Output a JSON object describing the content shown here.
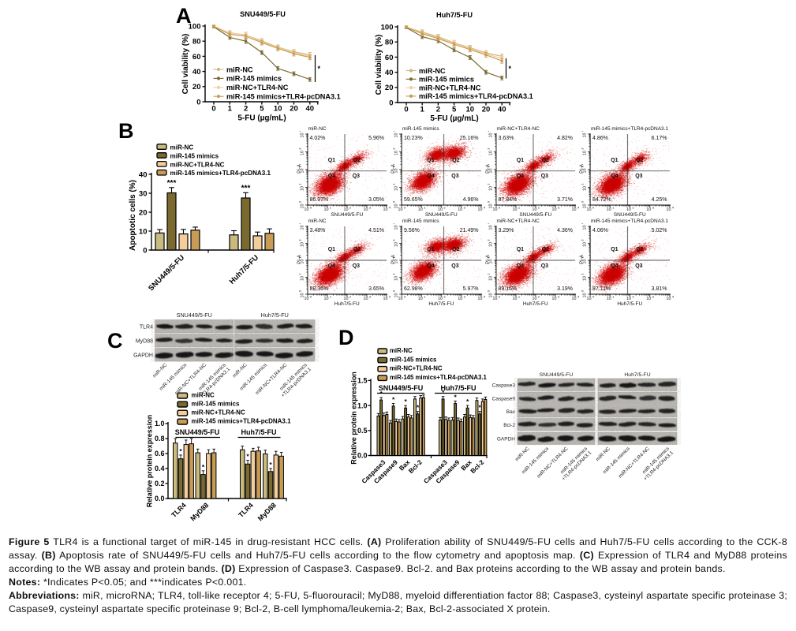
{
  "panels": {
    "a": "A",
    "b": "B",
    "c": "C",
    "d": "D"
  },
  "colors": {
    "series": [
      "#c9ba80",
      "#7b6a2f",
      "#f4cd9b",
      "#c89c55"
    ],
    "axis": "#000000",
    "scatter": "#cc0000",
    "blot_bg": "#b6b3ae",
    "band": "#141414"
  },
  "series_labels": [
    "miR-NC",
    "miR-145 mimics",
    "miR-NC+TLR4-NC",
    "miR-145 mimics+TLR4-pcDNA3.1"
  ],
  "chart_data": [
    {
      "id": "cck8_snu449",
      "type": "line",
      "title": "SNU449/5-FU",
      "xlabel": "5-FU (µg/mL)",
      "ylabel": "Cell viability (%)",
      "x_ticks": [
        "0",
        "1",
        "2",
        "5",
        "10",
        "20",
        "40"
      ],
      "ylim": [
        0,
        100
      ],
      "y_step": 20,
      "sig": "*",
      "legend_position": "inside-left",
      "series": [
        {
          "name": "miR-NC",
          "values": [
            99,
            91,
            88,
            80.5,
            72,
            66,
            62
          ],
          "err": [
            1.5,
            3,
            3.5,
            3,
            3,
            3,
            3
          ]
        },
        {
          "name": "miR-145 mimics",
          "values": [
            99,
            85,
            80,
            65,
            44,
            37,
            29.5
          ],
          "err": [
            1.5,
            2.5,
            3,
            2.5,
            2.5,
            2.5,
            2.5
          ]
        },
        {
          "name": "miR-NC+TLR4-NC",
          "values": [
            100,
            90.5,
            88.5,
            79,
            71.5,
            65,
            60
          ],
          "err": [
            1.5,
            3,
            3.5,
            3,
            3,
            3,
            3
          ]
        },
        {
          "name": "miR-145 mimics+TLR4-pcDNA3.1",
          "values": [
            99.5,
            89,
            86.5,
            78,
            70.5,
            63.5,
            58.5
          ],
          "err": [
            1.5,
            3,
            3,
            3,
            3,
            3,
            3
          ]
        }
      ]
    },
    {
      "id": "cck8_huh7",
      "type": "line",
      "title": "Huh7/5-FU",
      "xlabel": "5-FU (µg/mL)",
      "ylabel": "Cell viability (%)",
      "x_ticks": [
        "0",
        "1",
        "2",
        "5",
        "10",
        "20",
        "40"
      ],
      "ylim": [
        0,
        100
      ],
      "y_step": 20,
      "sig": "*",
      "legend_position": "inside-left",
      "series": [
        {
          "name": "miR-NC",
          "values": [
            99.5,
            93,
            87,
            79,
            72.5,
            65.5,
            61
          ],
          "err": [
            1.5,
            3,
            3,
            3,
            3,
            3,
            3
          ]
        },
        {
          "name": "miR-145 mimics",
          "values": [
            99,
            87,
            81.5,
            69.5,
            59.5,
            40,
            32.5
          ],
          "err": [
            1.5,
            2.5,
            2.5,
            2.5,
            2.5,
            2.5,
            2.5
          ]
        },
        {
          "name": "miR-NC+TLR4-NC",
          "values": [
            100,
            92,
            86,
            78.5,
            71.5,
            64.5,
            58
          ],
          "err": [
            1.5,
            3,
            3,
            3.5,
            3,
            3,
            3
          ]
        },
        {
          "name": "miR-145 mimics+TLR4-pcDNA3.1",
          "values": [
            99.5,
            91,
            84.5,
            77,
            70,
            63,
            55
          ],
          "err": [
            1.5,
            3,
            3,
            3,
            3,
            3,
            3
          ]
        }
      ]
    },
    {
      "id": "apoptosis",
      "type": "bar",
      "ylabel": "Apoptotic cells (%)",
      "categories": [
        "SNU449/5-FU",
        "Huh7/5-FU"
      ],
      "ylim": [
        0,
        40
      ],
      "y_step": 10,
      "y_decimals": 0,
      "series": [
        {
          "name": "miR-NC",
          "values": [
            9,
            8
          ],
          "err": [
            1.8,
            2.2
          ]
        },
        {
          "name": "miR-145 mimics",
          "values": [
            30.2,
            27.5
          ],
          "err": [
            2.8,
            2.8
          ],
          "sig": "***"
        },
        {
          "name": "miR-NC+TLR4-NC",
          "values": [
            8.5,
            7.5
          ],
          "err": [
            2.4,
            2
          ]
        },
        {
          "name": "miR-145 mimics+TLR4-pcDNA3.1",
          "values": [
            10.5,
            8.8
          ],
          "err": [
            1.6,
            2.4
          ]
        }
      ]
    },
    {
      "id": "flow",
      "type": "scatter-grid",
      "ylabel": "PI-A",
      "log_decades": [
        0,
        1,
        2,
        3,
        4
      ],
      "col_titles": [
        "miR-NC",
        "miR-145 mimics",
        "miR-NC+TLR4-NC",
        "miR-145 mimics+TLR4-pcDNA3.1"
      ],
      "quadrant_labels": [
        "Q1",
        "Q2",
        "Q3",
        "Q4"
      ],
      "rows": [
        {
          "xlabel": "SNU449/5-FU",
          "plots": [
            {
              "q1": "4.02%",
              "q2": "5.96%",
              "q3": "3.05%",
              "q4": "86.97%",
              "profile": "lo"
            },
            {
              "q1": "10.23%",
              "q2": "25.16%",
              "q3": "4.96%",
              "q4": "59.65%",
              "profile": "hi"
            },
            {
              "q1": "3.63%",
              "q2": "4.82%",
              "q3": "3.71%",
              "q4": "87.84%",
              "profile": "lo"
            },
            {
              "q1": "4.86%",
              "q2": "6.17%",
              "q3": "4.25%",
              "q4": "84.72%",
              "profile": "lo"
            }
          ]
        },
        {
          "xlabel": "Huh7/5-FU",
          "plots": [
            {
              "q1": "3.48%",
              "q2": "4.51%",
              "q3": "3.65%",
              "q4": "88.36%",
              "profile": "lo"
            },
            {
              "q1": "9.56%",
              "q2": "21.49%",
              "q3": "5.97%",
              "q4": "62.98%",
              "profile": "hi"
            },
            {
              "q1": "3.29%",
              "q2": "4.36%",
              "q3": "3.19%",
              "q4": "89.16%",
              "profile": "lo"
            },
            {
              "q1": "4.06%",
              "q2": "5.02%",
              "q3": "3.81%",
              "q4": "87.11%",
              "profile": "lo"
            }
          ]
        }
      ],
      "cluster_profiles": {
        "lo": [
          {
            "c": [
              0.275,
              0.705
            ],
            "s": [
              0.1,
              0.07
            ],
            "a": -30,
            "n": 4300,
            "core": 0.8
          },
          {
            "c": [
              0.465,
              0.45
            ],
            "s": [
              0.072,
              0.04
            ],
            "a": -32,
            "n": 780,
            "core": 0.5
          },
          {
            "c": [
              0.62,
              0.345
            ],
            "s": [
              0.088,
              0.044
            ],
            "a": -26,
            "n": 540,
            "core": 0.4
          }
        ],
        "hi": [
          {
            "c": [
              0.27,
              0.655
            ],
            "s": [
              0.092,
              0.064
            ],
            "a": -30,
            "n": 3100,
            "core": 0.75
          },
          {
            "c": [
              0.44,
              0.29
            ],
            "s": [
              0.078,
              0.054
            ],
            "a": -18,
            "n": 1350,
            "core": 0.65
          },
          {
            "c": [
              0.65,
              0.265
            ],
            "s": [
              0.088,
              0.057
            ],
            "a": -18,
            "n": 1600,
            "core": 0.65
          }
        ]
      },
      "sparse_points": 300
    },
    {
      "id": "wb_c",
      "type": "blot",
      "group_titles": [
        "SNU449/5-FU",
        "Huh7/5-FU"
      ],
      "rows": [
        "TLR4",
        "MyD88",
        "GAPDH"
      ],
      "lane_labels": [
        "miR-NC",
        "miR-145 mimics",
        "miR-NC+TLR4-NC",
        "miR-145 mimics|+TLR4-pcDNA3.1"
      ],
      "band_intensity": [
        [
          1.0,
          0.8,
          0.95,
          0.9,
          0.95,
          0.75,
          0.95,
          0.95
        ],
        [
          0.9,
          0.62,
          0.95,
          0.9,
          0.9,
          0.68,
          0.95,
          0.9
        ],
        [
          1.0,
          1.0,
          1.0,
          1.0,
          1.0,
          1.0,
          1.0,
          1.0
        ]
      ]
    },
    {
      "id": "bar_c",
      "type": "grouped-bar",
      "ylabel": "Relative protein expression",
      "group_titles": [
        "SNU449/5-FU",
        "Huh7/5-FU"
      ],
      "categories": [
        "TLR4",
        "MyD88",
        "TLR4",
        "MyD88"
      ],
      "ylim": [
        0,
        1.0
      ],
      "y_step": 0.2,
      "y_decimals": 1,
      "series": [
        {
          "name": "miR-NC",
          "values": [
            0.74,
            0.61,
            0.65,
            0.595
          ],
          "err": [
            0.06,
            0.05,
            0.05,
            0.05
          ]
        },
        {
          "name": "miR-145 mimics",
          "values": [
            0.53,
            0.32,
            0.46,
            0.36
          ],
          "err": [
            0.05,
            0.05,
            0.05,
            0.04
          ],
          "sig": "*"
        },
        {
          "name": "miR-NC+TLR4-NC",
          "values": [
            0.72,
            0.6,
            0.63,
            0.58
          ],
          "err": [
            0.06,
            0.05,
            0.04,
            0.05
          ]
        },
        {
          "name": "miR-145 mimics+TLR4-pcDNA3.1",
          "values": [
            0.73,
            0.61,
            0.635,
            0.565
          ],
          "err": [
            0.07,
            0.05,
            0.05,
            0.05
          ]
        }
      ]
    },
    {
      "id": "bar_d",
      "type": "grouped-bar",
      "ylabel": "Relative protein expression",
      "group_titles": [
        "SNU449/5-FU",
        "Huh7/5-FU"
      ],
      "categories": [
        "Caspase3",
        "Caspase9",
        "Bax",
        "Bcl-2",
        "Caspase3",
        "Caspase9",
        "Bax",
        "Bcl-2"
      ],
      "ylim": [
        0,
        1.5
      ],
      "y_step": 0.5,
      "y_decimals": 1,
      "series": [
        {
          "name": "miR-NC",
          "values": [
            0.79,
            0.65,
            0.73,
            1.13,
            0.71,
            0.71,
            0.77,
            1.1
          ],
          "err": [
            0.05,
            0.05,
            0.05,
            0.05,
            0.05,
            0.05,
            0.05,
            0.05
          ]
        },
        {
          "name": "miR-145 mimics",
          "values": [
            1.11,
            0.99,
            0.95,
            0.83,
            1.13,
            1.04,
            0.95,
            0.83
          ],
          "err": [
            0.05,
            0.05,
            0.05,
            0.05,
            0.05,
            0.05,
            0.05,
            0.05
          ],
          "sig": "*"
        },
        {
          "name": "miR-NC+TLR4-NC",
          "values": [
            0.8,
            0.68,
            0.77,
            1.15,
            0.72,
            0.7,
            0.76,
            1.08
          ],
          "err": [
            0.05,
            0.05,
            0.05,
            0.05,
            0.05,
            0.05,
            0.05,
            0.05
          ]
        },
        {
          "name": "miR-145 mimics+TLR4-pcDNA3.1",
          "values": [
            0.82,
            0.67,
            0.75,
            1.16,
            0.7,
            0.68,
            0.75,
            1.12
          ],
          "err": [
            0.05,
            0.05,
            0.05,
            0.05,
            0.05,
            0.05,
            0.05,
            0.05
          ]
        }
      ]
    },
    {
      "id": "wb_d",
      "type": "blot",
      "group_titles": [
        "SNU449/5-FU",
        "Huh7/5-FU"
      ],
      "rows": [
        "Caspase3",
        "Caspase9",
        "Bax",
        "Bcl-2",
        "GAPDH"
      ],
      "lane_labels": [
        "miR-NC",
        "miR-145 mimics",
        "miR-NC+TLR4-NC",
        "miR-145 mimics|+TLR4-pcDNA3.1"
      ],
      "band_intensity": [
        [
          0.85,
          1.0,
          0.85,
          0.8,
          0.9,
          1.0,
          0.85,
          0.85
        ],
        [
          0.85,
          0.95,
          0.8,
          0.8,
          0.85,
          0.95,
          0.75,
          0.8
        ],
        [
          0.9,
          0.95,
          0.85,
          0.85,
          0.85,
          0.9,
          0.8,
          0.85
        ],
        [
          0.9,
          0.75,
          0.9,
          0.9,
          0.9,
          0.8,
          0.85,
          0.95
        ],
        [
          1.0,
          1.0,
          1.0,
          1.0,
          1.0,
          1.0,
          1.0,
          1.0
        ]
      ]
    }
  ],
  "caption": {
    "p1": [
      {
        "b": true,
        "t": "Figure 5"
      },
      {
        "t": " TLR4 is a functional target of miR-145 in drug-resistant HCC cells. "
      },
      {
        "b": true,
        "t": "(A)"
      },
      {
        "t": " Proliferation ability of SNU449/5-FU cells and Huh7/5-FU cells according to the CCK-8 assay. "
      },
      {
        "b": true,
        "t": "(B)"
      },
      {
        "t": " Apoptosis rate of SNU449/5-FU cells and Huh7/5-FU cells according to the flow cytometry and apoptosis map. "
      },
      {
        "b": true,
        "t": "(C)"
      },
      {
        "t": " Expression of TLR4 and MyD88 proteins according to the WB assay and protein bands. "
      },
      {
        "b": true,
        "t": "(D)"
      },
      {
        "t": " Expression of Caspase3. Caspase9. Bcl-2. and Bax proteins according to the WB assay and protein bands."
      }
    ],
    "p2": [
      {
        "b": true,
        "t": "Notes:"
      },
      {
        "t": " *Indicates P<0.05; and ***indicates P<0.001."
      }
    ],
    "p3": [
      {
        "b": true,
        "t": "Abbreviations:"
      },
      {
        "t": " miR, microRNA; TLR4, toll-like receptor 4; 5-FU, 5-fluorouracil; MyD88, myeloid differentiation factor 88; Caspase3, cysteinyl aspartate specific proteinase 3; Caspase9, cysteinyl aspartate specific proteinase 9; Bcl-2, B-cell lymphoma/leukemia-2; Bax, Bcl-2-associated X protein."
      }
    ]
  }
}
